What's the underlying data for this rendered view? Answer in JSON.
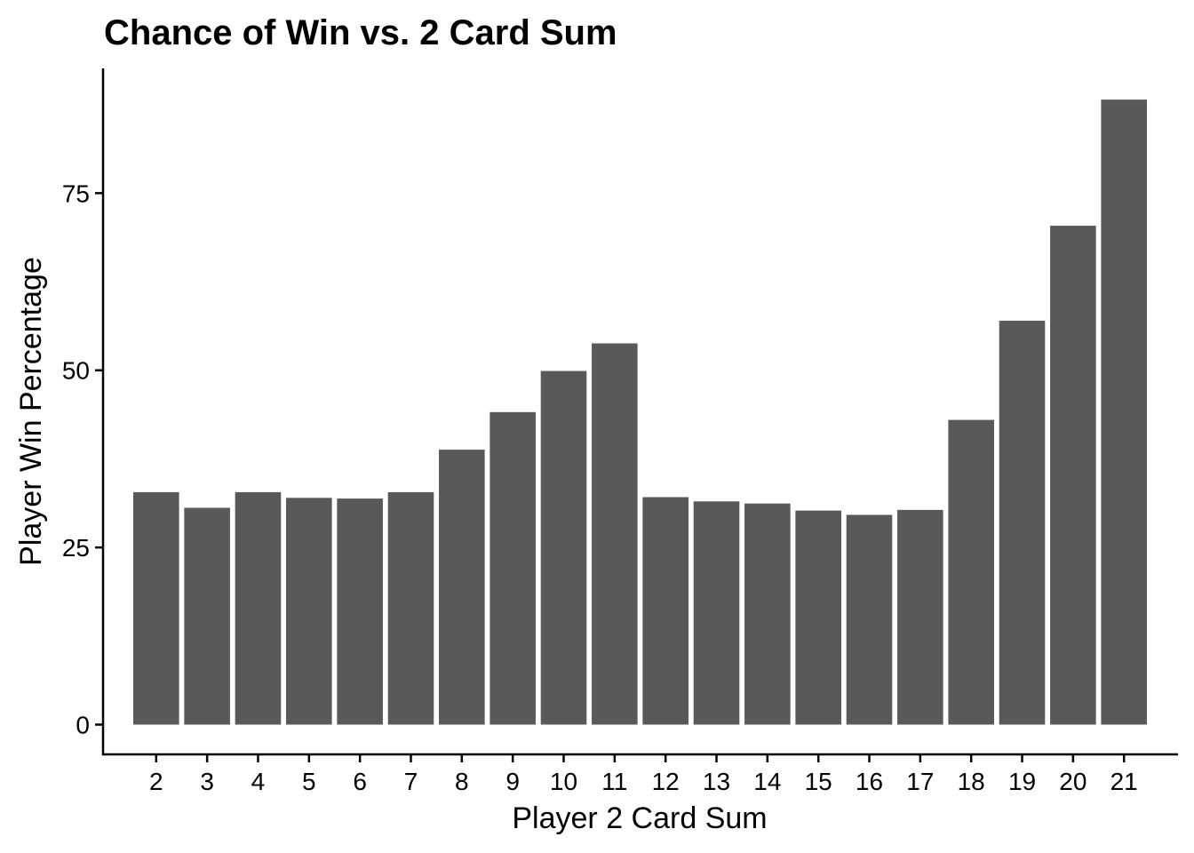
{
  "chart_data": {
    "type": "bar",
    "title": "Chance of Win vs. 2 Card Sum",
    "xlabel": "Player 2 Card Sum",
    "ylabel": "Player Win Percentage",
    "categories": [
      "2",
      "3",
      "4",
      "5",
      "6",
      "7",
      "8",
      "9",
      "10",
      "11",
      "12",
      "13",
      "14",
      "15",
      "16",
      "17",
      "18",
      "19",
      "20",
      "21"
    ],
    "values": [
      32.8,
      30.6,
      32.8,
      32.0,
      31.9,
      32.8,
      38.8,
      44.1,
      49.9,
      53.8,
      32.1,
      31.5,
      31.2,
      30.2,
      29.6,
      30.3,
      43.0,
      57.0,
      70.4,
      88.2
    ],
    "yticks": [
      0,
      25,
      50,
      75
    ],
    "ylim": [
      -4.2,
      92.6
    ],
    "bar_color": "#595959",
    "grid": false,
    "legend": "none"
  }
}
